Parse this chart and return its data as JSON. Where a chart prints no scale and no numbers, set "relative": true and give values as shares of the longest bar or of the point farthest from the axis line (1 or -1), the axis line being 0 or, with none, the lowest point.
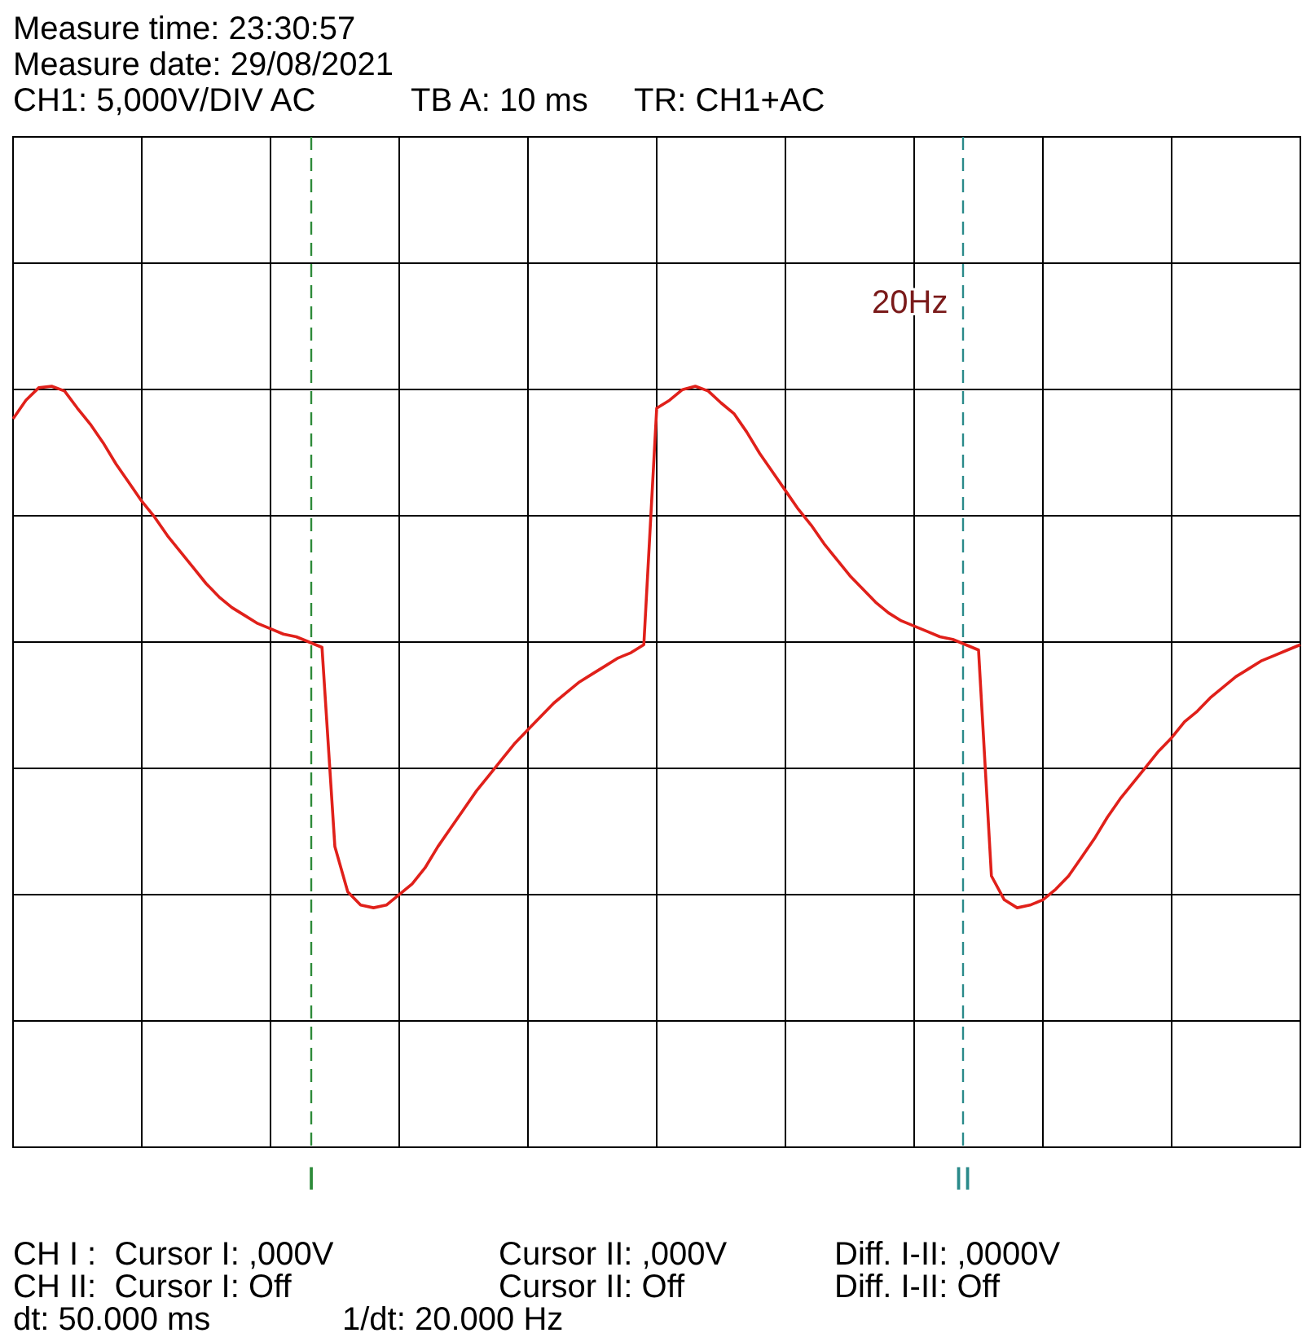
{
  "chart_data": {
    "type": "line",
    "title": "Measure time: 23:30:57",
    "subtitle": "Measure date: 29/08/2021",
    "annotations": [
      "CH1: 5,000V/DIV AC",
      "TB A: 10 ms",
      "TR: CH1+AC",
      "20Hz",
      "CH I :  Cursor I: ,000V",
      "Cursor II: ,000V",
      "Diff. I-II: ,0000V",
      "CH II:  Cursor I: Off",
      "Cursor II: Off",
      "Diff. I-II: Off",
      "dt: 50.000 ms",
      "1/dt: 20.000 Hz",
      "I",
      "II"
    ],
    "relative": true,
    "grid": true,
    "marker": "none",
    "line_style": "solid",
    "categories": [
      null,
      null,
      null,
      null,
      null,
      null,
      null,
      null,
      null,
      null,
      null,
      null,
      null,
      null,
      null,
      null,
      null,
      null,
      null,
      null,
      null,
      null,
      null,
      null,
      null,
      null,
      null,
      null,
      null,
      null,
      null,
      null,
      null,
      null,
      null,
      null,
      null,
      null,
      null,
      null,
      null,
      null,
      null,
      null,
      null,
      null,
      null,
      null,
      null,
      null,
      null,
      null,
      null,
      null,
      null,
      null,
      null,
      null,
      null,
      null,
      null,
      null,
      null,
      null,
      null,
      null,
      null,
      null,
      null,
      null,
      null,
      null,
      null,
      null,
      null,
      null,
      null,
      null,
      null,
      null,
      null,
      null,
      null,
      null,
      null,
      null,
      null,
      null,
      null,
      null,
      null,
      null,
      null,
      null,
      null,
      null,
      null,
      null,
      null,
      null,
      null
    ],
    "series": [
      {
        "color": "#e0201a",
        "values": [
          0.84,
          0.91,
          0.957,
          0.963,
          0.945,
          0.88,
          0.82,
          0.75,
          0.67,
          0.6,
          0.53,
          0.47,
          0.4,
          0.34,
          0.28,
          0.22,
          0.17,
          0.13,
          0.1,
          0.07,
          0.05,
          0.03,
          0.02,
          0,
          -0.02,
          -0.77,
          -0.94,
          -0.99,
          -1,
          -0.99,
          -0.95,
          -0.91,
          -0.85,
          -0.77,
          -0.7,
          -0.63,
          -0.56,
          -0.5,
          -0.44,
          -0.38,
          -0.33,
          -0.28,
          -0.23,
          -0.19,
          -0.15,
          -0.12,
          -0.09,
          -0.06,
          -0.04,
          -0.01,
          0.88,
          0.91,
          0.95,
          0.963,
          0.945,
          0.9,
          0.86,
          0.79,
          0.71,
          0.64,
          0.57,
          0.5,
          0.44,
          0.37,
          0.31,
          0.25,
          0.2,
          0.15,
          0.11,
          0.08,
          0.06,
          0.04,
          0.02,
          0.01,
          -0.01,
          -0.03,
          -0.88,
          -0.97,
          -1,
          -0.99,
          -0.97,
          -0.93,
          -0.88,
          -0.81,
          -0.74,
          -0.66,
          -0.59,
          -0.53,
          -0.47,
          -0.41,
          -0.36,
          -0.3,
          -0.26,
          -0.21,
          -0.17,
          -0.13,
          -0.1,
          -0.07,
          -0.05,
          -0.03,
          -0.01
        ]
      }
    ]
  }
}
